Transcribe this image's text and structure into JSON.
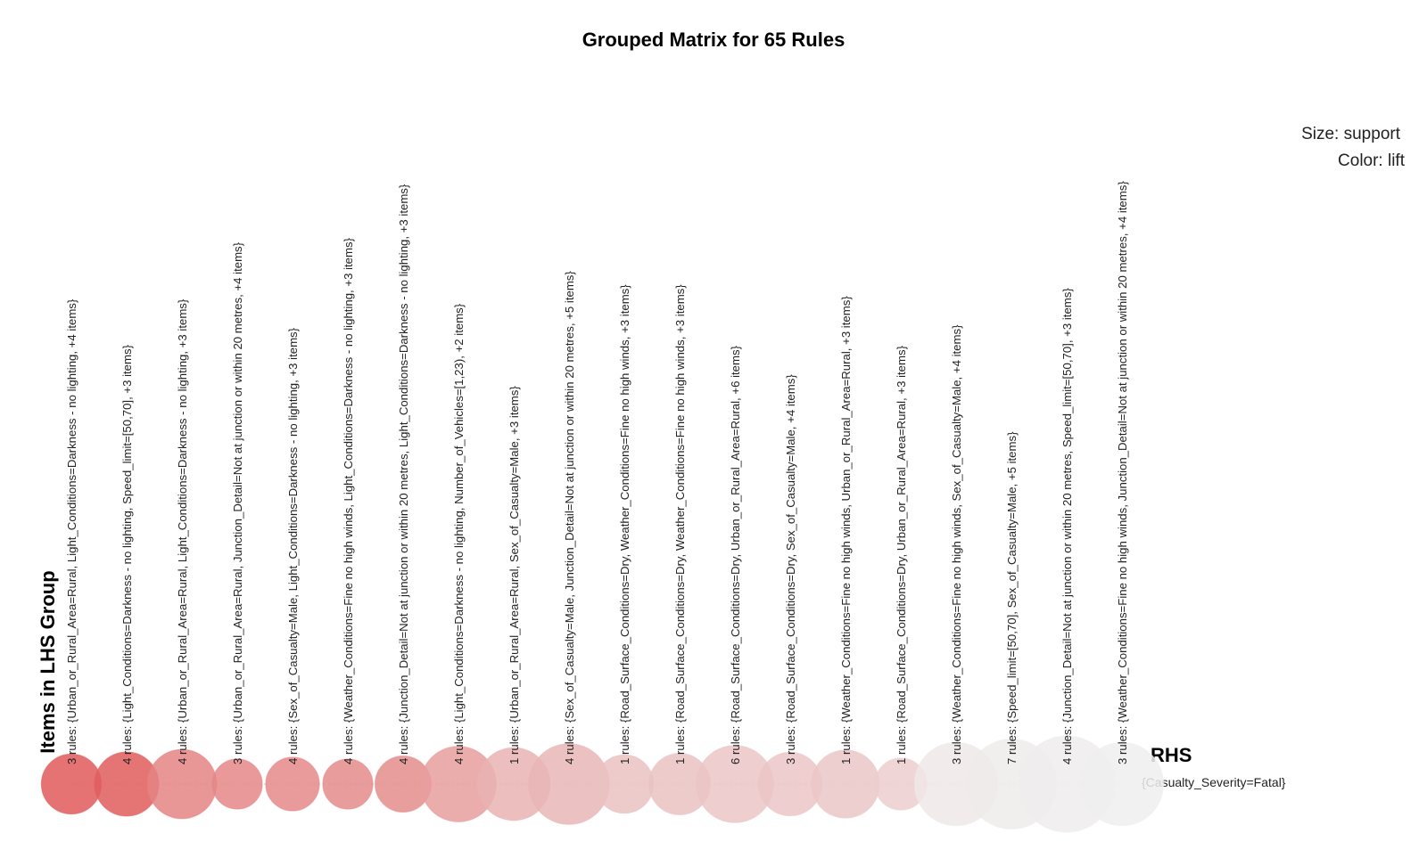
{
  "chart_data": {
    "type": "grouped-matrix",
    "title": "Grouped Matrix for 65 Rules",
    "legend_size": "Size: support",
    "legend_color": "Color: lift",
    "lhs_axis_label": "Items in LHS Group",
    "rhs_axis_label": "RHS",
    "rhs_items": [
      "{Casualty_Severity=Fatal}"
    ],
    "groups": [
      {
        "label": "3 rules: {Urban_or_Rural_Area=Rural, Light_Conditions=Darkness - no lighting, +4 items}",
        "support": 0.3,
        "lift": 1.0
      },
      {
        "label": "4 rules: {Light_Conditions=Darkness - no lighting, Speed_limit=[50,70], +3 items}",
        "support": 0.36,
        "lift": 0.98
      },
      {
        "label": "4 rules: {Urban_or_Rural_Area=Rural, Light_Conditions=Darkness - no lighting, +3 items}",
        "support": 0.44,
        "lift": 0.72
      },
      {
        "label": "3 rules: {Urban_or_Rural_Area=Rural, Junction_Detail=Not at junction or within 20 metres, +4 items}",
        "support": 0.18,
        "lift": 0.7
      },
      {
        "label": "4 rules: {Sex_of_Casualty=Male, Light_Conditions=Darkness - no lighting, +3 items}",
        "support": 0.22,
        "lift": 0.68
      },
      {
        "label": "4 rules: {Weather_Conditions=Fine no high winds, Light_Conditions=Darkness - no lighting, +3 items}",
        "support": 0.18,
        "lift": 0.67
      },
      {
        "label": "4 rules: {Junction_Detail=Not at junction or within 20 metres, Light_Conditions=Darkness - no lighting, +3 items}",
        "support": 0.25,
        "lift": 0.66
      },
      {
        "label": "4 rules: {Light_Conditions=Darkness - no lighting, Number_of_Vehicles=[1,23), +2 items}",
        "support": 0.55,
        "lift": 0.55
      },
      {
        "label": "1 rules: {Urban_or_Rural_Area=Rural, Sex_of_Casualty=Male, +3 items}",
        "support": 0.5,
        "lift": 0.4
      },
      {
        "label": "4 rules: {Sex_of_Casualty=Male, Junction_Detail=Not at junction or within 20 metres, +5 items}",
        "support": 0.65,
        "lift": 0.38
      },
      {
        "label": "1 rules: {Road_Surface_Conditions=Dry, Weather_Conditions=Fine no high winds, +3 items}",
        "support": 0.28,
        "lift": 0.3
      },
      {
        "label": "1 rules: {Road_Surface_Conditions=Dry, Weather_Conditions=Fine no high winds, +3 items}",
        "support": 0.32,
        "lift": 0.3
      },
      {
        "label": "6 rules: {Road_Surface_Conditions=Dry, Urban_or_Rural_Area=Rural, +6 items}",
        "support": 0.58,
        "lift": 0.28
      },
      {
        "label": "3 rules: {Road_Surface_Conditions=Dry, Sex_of_Casualty=Male, +4 items}",
        "support": 0.35,
        "lift": 0.28
      },
      {
        "label": "1 rules: {Weather_Conditions=Fine no high winds, Urban_or_Rural_Area=Rural, +3 items}",
        "support": 0.42,
        "lift": 0.27
      },
      {
        "label": "1 rules: {Road_Surface_Conditions=Dry, Urban_or_Rural_Area=Rural, +3 items}",
        "support": 0.2,
        "lift": 0.22
      },
      {
        "label": "3 rules: {Weather_Conditions=Fine no high winds, Sex_of_Casualty=Male, +4 items}",
        "support": 0.7,
        "lift": 0.05
      },
      {
        "label": "7 rules: {Speed_limit=[50,70], Sex_of_Casualty=Male, +5 items}",
        "support": 0.85,
        "lift": 0.03
      },
      {
        "label": "4 rules: {Junction_Detail=Not at junction or within 20 metres, Speed_limit=[50,70], +3 items}",
        "support": 1.0,
        "lift": 0.02
      },
      {
        "label": "3 rules: {Weather_Conditions=Fine no high winds, Junction_Detail=Not at junction or within 20 metres, +4 items}",
        "support": 0.7,
        "lift": 0.0
      }
    ],
    "color_high": "#e05a5a",
    "color_low": "#efefef",
    "grid_line_color": "#cccccc"
  }
}
